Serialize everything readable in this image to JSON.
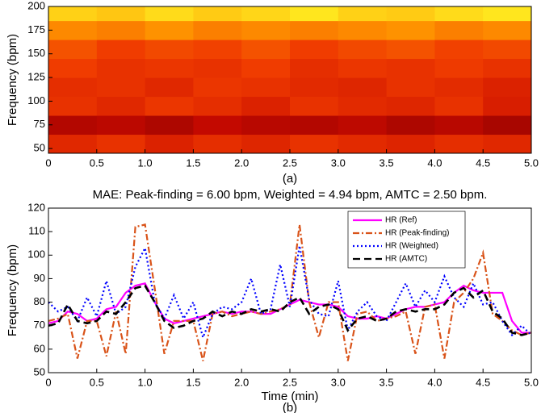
{
  "chart_data": [
    {
      "type": "heatmap",
      "ylabel": "Frequency (bpm)",
      "caption": "(a)",
      "xbins": [
        0,
        0.5,
        1,
        1.5,
        2,
        2.5,
        3,
        3.5,
        4,
        4.5,
        5
      ],
      "ybins": [
        45,
        65,
        85,
        105,
        125,
        145,
        165,
        185,
        200
      ],
      "z": [
        [
          0.45,
          0.5,
          0.42,
          0.48,
          0.44,
          0.5,
          0.46,
          0.43,
          0.48,
          0.45
        ],
        [
          0.22,
          0.25,
          0.2,
          0.28,
          0.24,
          0.22,
          0.26,
          0.2,
          0.24,
          0.18
        ],
        [
          0.5,
          0.45,
          0.52,
          0.48,
          0.42,
          0.5,
          0.46,
          0.44,
          0.5,
          0.4
        ],
        [
          0.48,
          0.5,
          0.45,
          0.52,
          0.5,
          0.46,
          0.44,
          0.5,
          0.47,
          0.42
        ],
        [
          0.55,
          0.5,
          0.52,
          0.5,
          0.55,
          0.48,
          0.52,
          0.5,
          0.54,
          0.5
        ],
        [
          0.6,
          0.55,
          0.58,
          0.56,
          0.6,
          0.55,
          0.58,
          0.6,
          0.56,
          0.58
        ],
        [
          0.72,
          0.7,
          0.74,
          0.7,
          0.72,
          0.7,
          0.72,
          0.74,
          0.7,
          0.72
        ],
        [
          0.86,
          0.84,
          0.88,
          0.85,
          0.87,
          0.9,
          0.86,
          0.85,
          0.88,
          0.9
        ]
      ],
      "xlim": [
        0,
        5
      ],
      "ylim": [
        45,
        200
      ],
      "xticks": [
        0,
        0.5,
        {
          "value": 1,
          "label": "1.0"
        },
        1.5,
        {
          "value": 2,
          "label": "2.0"
        },
        2.5,
        {
          "value": 3,
          "label": "3.0"
        },
        3.5,
        {
          "value": 4,
          "label": "4.0"
        },
        4.5,
        {
          "value": 5,
          "label": "5.0"
        }
      ],
      "yticks": [
        50,
        75,
        100,
        125,
        150,
        175,
        200
      ]
    },
    {
      "type": "line",
      "title": "MAE: Peak-finding = 6.00 bpm, Weighted = 4.94 bpm, AMTC = 2.50 bpm.",
      "xlabel": "Time (min)",
      "ylabel": "Frequency (bpm)",
      "caption": "(b)",
      "legend": "upper right",
      "x": [
        0,
        0.1,
        0.2,
        0.3,
        0.4,
        0.5,
        0.6,
        0.7,
        0.8,
        0.9,
        1,
        1.1,
        1.2,
        1.3,
        1.4,
        1.5,
        1.6,
        1.7,
        1.8,
        1.9,
        2,
        2.1,
        2.2,
        2.3,
        2.4,
        2.5,
        2.6,
        2.7,
        2.8,
        2.9,
        3,
        3.1,
        3.2,
        3.3,
        3.4,
        3.5,
        3.6,
        3.7,
        3.8,
        3.9,
        4,
        4.1,
        4.2,
        4.3,
        4.4,
        4.5,
        4.6,
        4.7,
        4.8,
        4.9,
        5
      ],
      "series": [
        {
          "name": "HR (Ref)",
          "color": "#ff00ff",
          "dash": "solid",
          "values": [
            71,
            72,
            76,
            75,
            72,
            73,
            77,
            78,
            84,
            87,
            88,
            80,
            73,
            71,
            72,
            73,
            74,
            75,
            76,
            75,
            76,
            76,
            75,
            75,
            77,
            79,
            81,
            80,
            79,
            79,
            78,
            74,
            73,
            73,
            74,
            73,
            75,
            77,
            78,
            78,
            79,
            80,
            84,
            87,
            85,
            84,
            84,
            84,
            72,
            67,
            67
          ]
        },
        {
          "name": "HR (Peak-finding)",
          "color": "#d95319",
          "dash": "dashdot",
          "values": [
            72,
            73,
            75,
            56,
            72,
            72,
            57,
            76,
            58,
            112,
            113,
            86,
            58,
            72,
            72,
            72,
            55,
            75,
            76,
            74,
            75,
            76,
            75,
            76,
            77,
            79,
            113,
            80,
            65,
            80,
            80,
            55,
            75,
            76,
            72,
            73,
            74,
            76,
            58,
            78,
            79,
            56,
            80,
            84,
            90,
            101,
            75,
            72,
            68,
            66,
            67
          ]
        },
        {
          "name": "HR (Weighted)",
          "color": "#0000ff",
          "dash": "dotted",
          "values": [
            80,
            76,
            78,
            72,
            82,
            74,
            89,
            75,
            78,
            95,
            103,
            80,
            73,
            83,
            73,
            80,
            65,
            75,
            78,
            77,
            80,
            90,
            75,
            77,
            96,
            78,
            104,
            81,
            75,
            74,
            89,
            68,
            76,
            80,
            74,
            72,
            80,
            88,
            78,
            85,
            80,
            91,
            82,
            78,
            88,
            79,
            80,
            72,
            66,
            70,
            66
          ]
        },
        {
          "name": "HR (AMTC)",
          "color": "#000000",
          "dash": "dashed",
          "values": [
            70,
            71,
            79,
            72,
            71,
            72,
            76,
            75,
            80,
            86,
            87,
            80,
            72,
            69,
            70,
            72,
            73,
            76,
            74,
            76,
            75,
            77,
            76,
            77,
            76,
            80,
            82,
            75,
            78,
            79,
            77,
            68,
            73,
            74,
            72,
            73,
            76,
            77,
            76,
            77,
            77,
            79,
            84,
            86,
            82,
            85,
            76,
            73,
            67,
            66,
            67
          ]
        }
      ],
      "xlim": [
        0,
        5
      ],
      "ylim": [
        50,
        120
      ],
      "xticks": [
        0,
        0.5,
        {
          "value": 1,
          "label": "1.0"
        },
        1.5,
        {
          "value": 2,
          "label": "2.0"
        },
        2.5,
        {
          "value": 3,
          "label": "3.0"
        },
        3.5,
        {
          "value": 4,
          "label": "4.0"
        },
        4.5,
        {
          "value": 5,
          "label": "5.0"
        }
      ],
      "yticks": [
        50,
        60,
        70,
        80,
        90,
        100,
        110,
        120
      ]
    }
  ]
}
